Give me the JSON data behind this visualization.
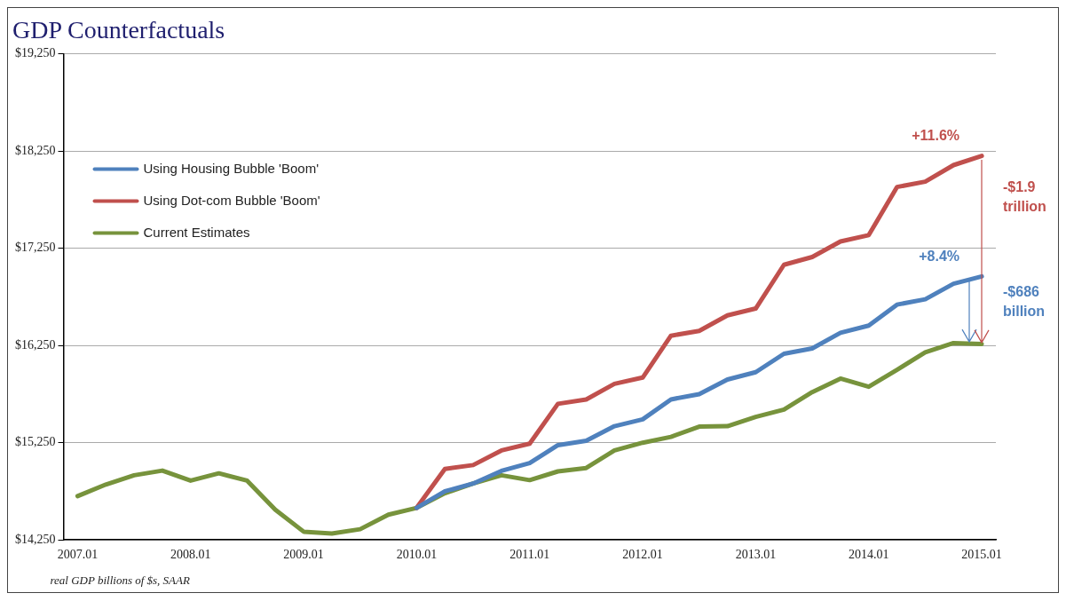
{
  "chart_data": {
    "type": "line",
    "title": "GDP Counterfactuals",
    "categories": [
      "2007.01",
      null,
      null,
      null,
      "2008.01",
      null,
      null,
      null,
      "2009.01",
      null,
      null,
      null,
      "2010.01",
      null,
      null,
      null,
      "2011.01",
      null,
      null,
      null,
      "2012.01",
      null,
      null,
      null,
      "2013.01",
      null,
      null,
      null,
      "2014.01",
      null,
      null,
      null,
      "2015.01"
    ],
    "series": [
      {
        "name": "Using Housing Bubble 'Boom'",
        "color": "#4f81bd",
        "values": [
          null,
          null,
          null,
          null,
          null,
          null,
          null,
          null,
          null,
          null,
          null,
          null,
          14580,
          14750,
          14830,
          14960,
          15040,
          15225,
          15270,
          15420,
          15490,
          15695,
          15750,
          15900,
          15975,
          16165,
          16220,
          16380,
          16455,
          16670,
          16725,
          16885,
          16960
        ]
      },
      {
        "name": "Using Dot-com Bubble 'Boom'",
        "color": "#c0504d",
        "values": [
          null,
          null,
          null,
          null,
          null,
          null,
          null,
          null,
          null,
          null,
          null,
          null,
          14580,
          14980,
          15020,
          15170,
          15240,
          15650,
          15695,
          15855,
          15920,
          16350,
          16400,
          16560,
          16630,
          17080,
          17160,
          17320,
          17385,
          17880,
          17935,
          18105,
          18200
        ]
      },
      {
        "name": "Current Estimates",
        "color": "#77933c",
        "values": [
          14700,
          14820,
          14915,
          14963,
          14860,
          14935,
          14860,
          14560,
          14335,
          14315,
          14360,
          14510,
          14580,
          14730,
          14830,
          14915,
          14865,
          14955,
          14990,
          15170,
          15250,
          15310,
          15415,
          15420,
          15515,
          15590,
          15770,
          15910,
          15825,
          16000,
          16180,
          16275,
          16265
        ]
      }
    ],
    "ylim": [
      14250,
      19250
    ],
    "yticks": [
      {
        "value": 14250,
        "label": "$14,250"
      },
      {
        "value": 15250,
        "label": "$15,250"
      },
      {
        "value": 16250,
        "label": "$16,250"
      },
      {
        "value": 17250,
        "label": "$17,250"
      },
      {
        "value": 18250,
        "label": "$18,250"
      },
      {
        "value": 19250,
        "label": "$19,250"
      }
    ],
    "grid": "y",
    "legend": "top left",
    "marker": "none",
    "line_style": "solid",
    "annotations": [
      {
        "text": "+11.6%",
        "x": "2015.01",
        "y": 18200
      },
      "-$1.9 trillion",
      {
        "text": "+8.4%",
        "x": "2015.01",
        "y": 16960
      },
      "-$686 billion",
      "real GDP billions of $s, SAAR"
    ]
  }
}
